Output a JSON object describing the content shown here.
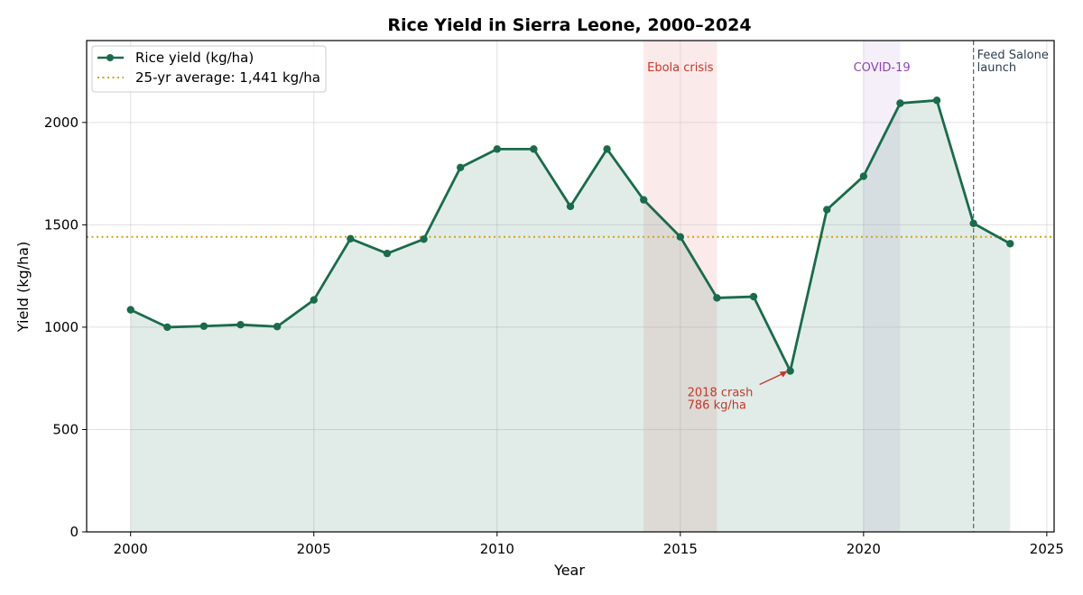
{
  "chart_data": {
    "type": "line",
    "title": "Rice Yield in Sierra Leone, 2000–2024",
    "xlabel": "Year",
    "ylabel": "Yield (kg/ha)",
    "xlim": [
      1998.8,
      2025.2
    ],
    "ylim": [
      0,
      2400
    ],
    "xticks": [
      2000,
      2005,
      2010,
      2015,
      2020,
      2025
    ],
    "yticks": [
      0,
      500,
      1000,
      1500,
      2000
    ],
    "grid": true,
    "legend_position": "top-left",
    "series": [
      {
        "name": "Rice yield (kg/ha)",
        "color": "#1b6b4b",
        "x": [
          2000,
          2001,
          2002,
          2003,
          2004,
          2005,
          2006,
          2007,
          2008,
          2009,
          2010,
          2011,
          2012,
          2013,
          2014,
          2015,
          2016,
          2017,
          2018,
          2019,
          2020,
          2021,
          2022,
          2023,
          2024
        ],
        "y": [
          1085,
          1000,
          1005,
          1012,
          1003,
          1133,
          1432,
          1360,
          1430,
          1780,
          1870,
          1870,
          1590,
          1870,
          1622,
          1441,
          1143,
          1149,
          786,
          1574,
          1737,
          2094,
          2108,
          1507,
          1408
        ]
      }
    ],
    "reference_line": {
      "label": "25-yr average: 1,441 kg/ha",
      "value": 1441,
      "color": "#d4a017"
    },
    "shaded_periods": [
      {
        "label": "Ebola crisis",
        "start": 2014,
        "end": 2016,
        "color": "#e88a8a",
        "text_color": "#c0392b"
      },
      {
        "label": "COVID-19",
        "start": 2020,
        "end": 2021,
        "color": "#c3a6e0",
        "text_color": "#8e44ad"
      }
    ],
    "events": [
      {
        "x": 2023,
        "label_lines": [
          "Feed Salone",
          "launch"
        ],
        "color": "#5d6d7e"
      }
    ],
    "annotations": [
      {
        "x": 2018,
        "y": 786,
        "label_lines": [
          "2018 crash",
          "786 kg/ha"
        ],
        "color": "#c0392b"
      }
    ]
  }
}
